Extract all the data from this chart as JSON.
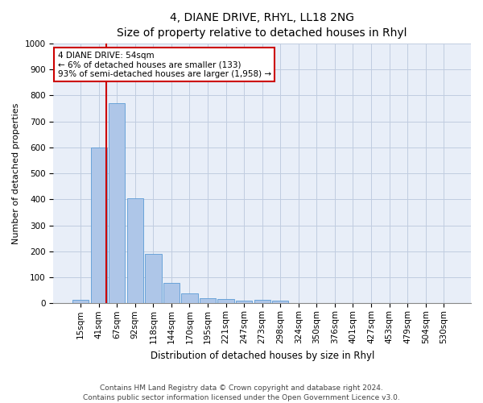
{
  "title1": "4, DIANE DRIVE, RHYL, LL18 2NG",
  "title2": "Size of property relative to detached houses in Rhyl",
  "xlabel": "Distribution of detached houses by size in Rhyl",
  "ylabel": "Number of detached properties",
  "categories": [
    "15sqm",
    "41sqm",
    "67sqm",
    "92sqm",
    "118sqm",
    "144sqm",
    "170sqm",
    "195sqm",
    "221sqm",
    "247sqm",
    "273sqm",
    "298sqm",
    "324sqm",
    "350sqm",
    "376sqm",
    "401sqm",
    "427sqm",
    "453sqm",
    "479sqm",
    "504sqm",
    "530sqm"
  ],
  "values": [
    15,
    600,
    770,
    405,
    190,
    78,
    40,
    20,
    17,
    12,
    15,
    10,
    0,
    0,
    0,
    0,
    0,
    0,
    0,
    0,
    0
  ],
  "bar_color": "#aec6e8",
  "bar_edge_color": "#5b9bd5",
  "annotation_text": "4 DIANE DRIVE: 54sqm\n← 6% of detached houses are smaller (133)\n93% of semi-detached houses are larger (1,958) →",
  "vline_x": 1.42,
  "annotation_box_color": "#ffffff",
  "annotation_box_edge": "#cc0000",
  "ylim": [
    0,
    1000
  ],
  "yticks": [
    0,
    100,
    200,
    300,
    400,
    500,
    600,
    700,
    800,
    900,
    1000
  ],
  "footer1": "Contains HM Land Registry data © Crown copyright and database right 2024.",
  "footer2": "Contains public sector information licensed under the Open Government Licence v3.0.",
  "background_color": "#e8eef8",
  "grid_color": "#c0cce0",
  "vline_color": "#cc0000",
  "title1_fontsize": 10,
  "title2_fontsize": 9,
  "ylabel_fontsize": 8,
  "xlabel_fontsize": 8.5,
  "tick_fontsize": 7.5,
  "annotation_fontsize": 7.5,
  "footer_fontsize": 6.5
}
